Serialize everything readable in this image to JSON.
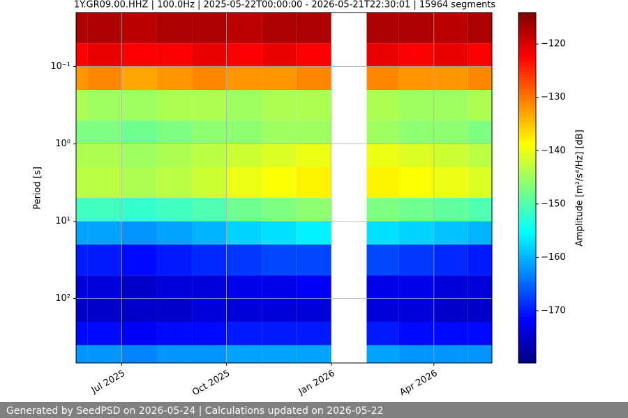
{
  "chart_data": {
    "type": "spectrogram",
    "title": "1Y.GR09.00.HHZ | 100.0Hz | 2025-05-22T00:00:00 - 2026-05-21T22:30:01 | 15964 segments",
    "ylabel": "Period [s]",
    "colorbar_label": "Amplitude [m²/s⁴/Hz] [dB]",
    "footer": "Generated by SeedPSD on 2026-05-24 | Calculations updated on 2026-05-22",
    "colormap": "jet",
    "log_y": true,
    "y_inverted": true,
    "grid": true,
    "xlim": [
      "2025-05-22T00:00:00",
      "2026-05-21T22:30:01"
    ],
    "xticks": [
      {
        "value": "2025-07-01",
        "label": "Jul 2025"
      },
      {
        "value": "2025-10-01",
        "label": "Oct 2025"
      },
      {
        "value": "2026-01-01",
        "label": "Jan 2026"
      },
      {
        "value": "2026-04-01",
        "label": "Apr 2026"
      }
    ],
    "ylim": [
      0.02,
      680
    ],
    "yticks": [
      {
        "value": 0.1,
        "label": "10⁻¹"
      },
      {
        "value": 1,
        "label": "10⁰"
      },
      {
        "value": 10,
        "label": "10¹"
      },
      {
        "value": 100,
        "label": "10²"
      }
    ],
    "clim": [
      -179.8,
      -114.1
    ],
    "cticks": [
      {
        "value": -120,
        "label": "−120"
      },
      {
        "value": -130,
        "label": "−130"
      },
      {
        "value": -140,
        "label": "−140"
      },
      {
        "value": -150,
        "label": "−150"
      },
      {
        "value": -160,
        "label": "−160"
      },
      {
        "value": -170,
        "label": "−170"
      }
    ],
    "x": [
      "2025-05",
      "2025-06",
      "2025-07",
      "2025-08",
      "2025-09",
      "2025-10",
      "2025-11",
      "2025-12",
      "2026-01",
      "2026-02",
      "2026-03",
      "2026-04",
      "2026-05"
    ],
    "period_bins": [
      0.02,
      0.05,
      0.1,
      0.2,
      0.5,
      1,
      2,
      5,
      10,
      20,
      50,
      100,
      200,
      400,
      680
    ],
    "z": [
      [
        -117,
        -117,
        -118,
        -117,
        -117,
        -118,
        -117,
        -117,
        null,
        -117,
        -117,
        -118,
        -117
      ],
      [
        -122,
        -121,
        -122,
        -122,
        -121,
        -122,
        -121,
        -122,
        null,
        -121,
        -122,
        -121,
        -122
      ],
      [
        -132,
        -131,
        -133,
        -132,
        -131,
        -132,
        -132,
        -131,
        null,
        -131,
        -132,
        -132,
        -131
      ],
      [
        -144,
        -145,
        -145,
        -144,
        -144,
        -145,
        -144,
        -144,
        null,
        -144,
        -145,
        -145,
        -144
      ],
      [
        -147,
        -147,
        -148,
        -147,
        -146,
        -146,
        -145,
        -145,
        null,
        -145,
        -146,
        -146,
        -147
      ],
      [
        -144,
        -144,
        -145,
        -144,
        -143,
        -142,
        -141,
        -140,
        null,
        -140,
        -141,
        -142,
        -143
      ],
      [
        -143,
        -143,
        -144,
        -143,
        -142,
        -140,
        -139,
        -138,
        null,
        -138,
        -139,
        -140,
        -141
      ],
      [
        -151,
        -151,
        -152,
        -151,
        -150,
        -148,
        -147,
        -146,
        null,
        -147,
        -148,
        -149,
        -150
      ],
      [
        -161,
        -161,
        -162,
        -161,
        -160,
        -158,
        -157,
        -156,
        null,
        -157,
        -158,
        -159,
        -160
      ],
      [
        -170,
        -170,
        -171,
        -170,
        -169,
        -168,
        -167,
        -167,
        null,
        -167,
        -168,
        -169,
        -170
      ],
      [
        -174,
        -174,
        -175,
        -174,
        -174,
        -173,
        -173,
        -172,
        null,
        -173,
        -173,
        -174,
        -174
      ],
      [
        -175,
        -175,
        -175,
        -175,
        -174,
        -174,
        -174,
        -174,
        null,
        -174,
        -174,
        -175,
        -175
      ],
      [
        -171,
        -171,
        -172,
        -171,
        -171,
        -170,
        -170,
        -170,
        null,
        -170,
        -171,
        -171,
        -171
      ],
      [
        -162,
        -162,
        -163,
        -162,
        -162,
        -161,
        -161,
        -161,
        null,
        -161,
        -162,
        -162,
        -162
      ]
    ]
  }
}
